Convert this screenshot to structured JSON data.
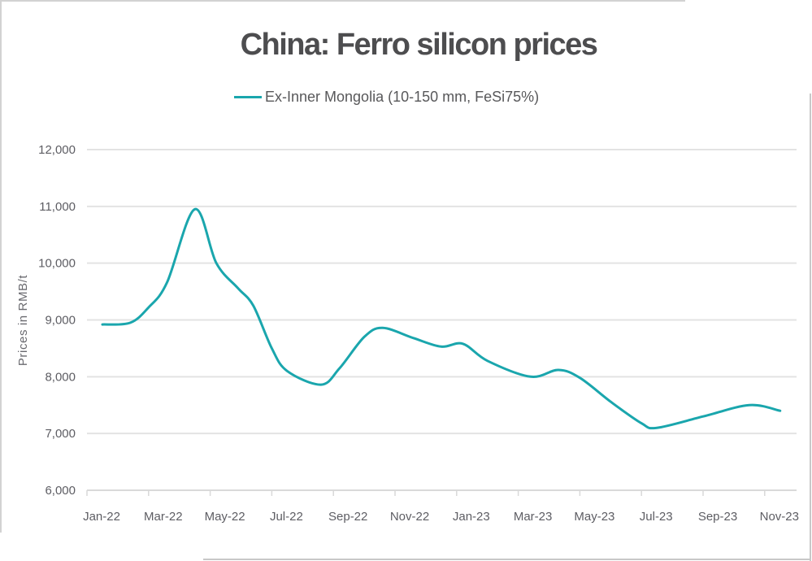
{
  "chart_data": {
    "type": "line",
    "title": "China: Ferro silicon prices",
    "xlabel": "",
    "ylabel": "Prices in RMB/t",
    "ylim": [
      6000,
      12000
    ],
    "yticks": [
      6000,
      7000,
      8000,
      9000,
      10000,
      11000,
      12000
    ],
    "ytick_labels": [
      "6,000",
      "7,000",
      "8,000",
      "9,000",
      "10,000",
      "11,000",
      "12,000"
    ],
    "xlim_months": [
      0,
      23.6
    ],
    "xticks_months": [
      0,
      2,
      4,
      6,
      8,
      10,
      12,
      14,
      16,
      18,
      20,
      22
    ],
    "xtick_labels": [
      "Jan-22",
      "Mar-22",
      "May-22",
      "Jul-22",
      "Sep-22",
      "Nov-22",
      "Jan-23",
      "Mar-23",
      "May-23",
      "Jul-23",
      "Sep-23",
      "Nov-23"
    ],
    "x_unit": "months since Jan-22",
    "grid": true,
    "legend_position": "top-center",
    "series": [
      {
        "name": "Ex-Inner Mongolia (10-150 mm, FeSi75%)",
        "color": "#1aa6ad",
        "x": [
          0.5,
          1.4,
          2.0,
          2.6,
          3.5,
          4.2,
          4.9,
          5.4,
          6.0,
          6.5,
          7.6,
          8.2,
          9.0,
          9.6,
          10.6,
          11.5,
          12.2,
          13.0,
          14.4,
          15.3,
          16.0,
          17.0,
          18.0,
          18.5,
          20.0,
          21.5,
          22.5
        ],
        "values": [
          8920,
          8950,
          9220,
          9660,
          10950,
          10000,
          9560,
          9250,
          8500,
          8100,
          7860,
          8150,
          8700,
          8860,
          8680,
          8530,
          8580,
          8280,
          8000,
          8120,
          7980,
          7560,
          7180,
          7100,
          7300,
          7500,
          7400
        ]
      }
    ]
  },
  "colors": {
    "title": "#4d4d4f",
    "grid": "#e3e3e3",
    "tick_text": "#5d5d63"
  }
}
